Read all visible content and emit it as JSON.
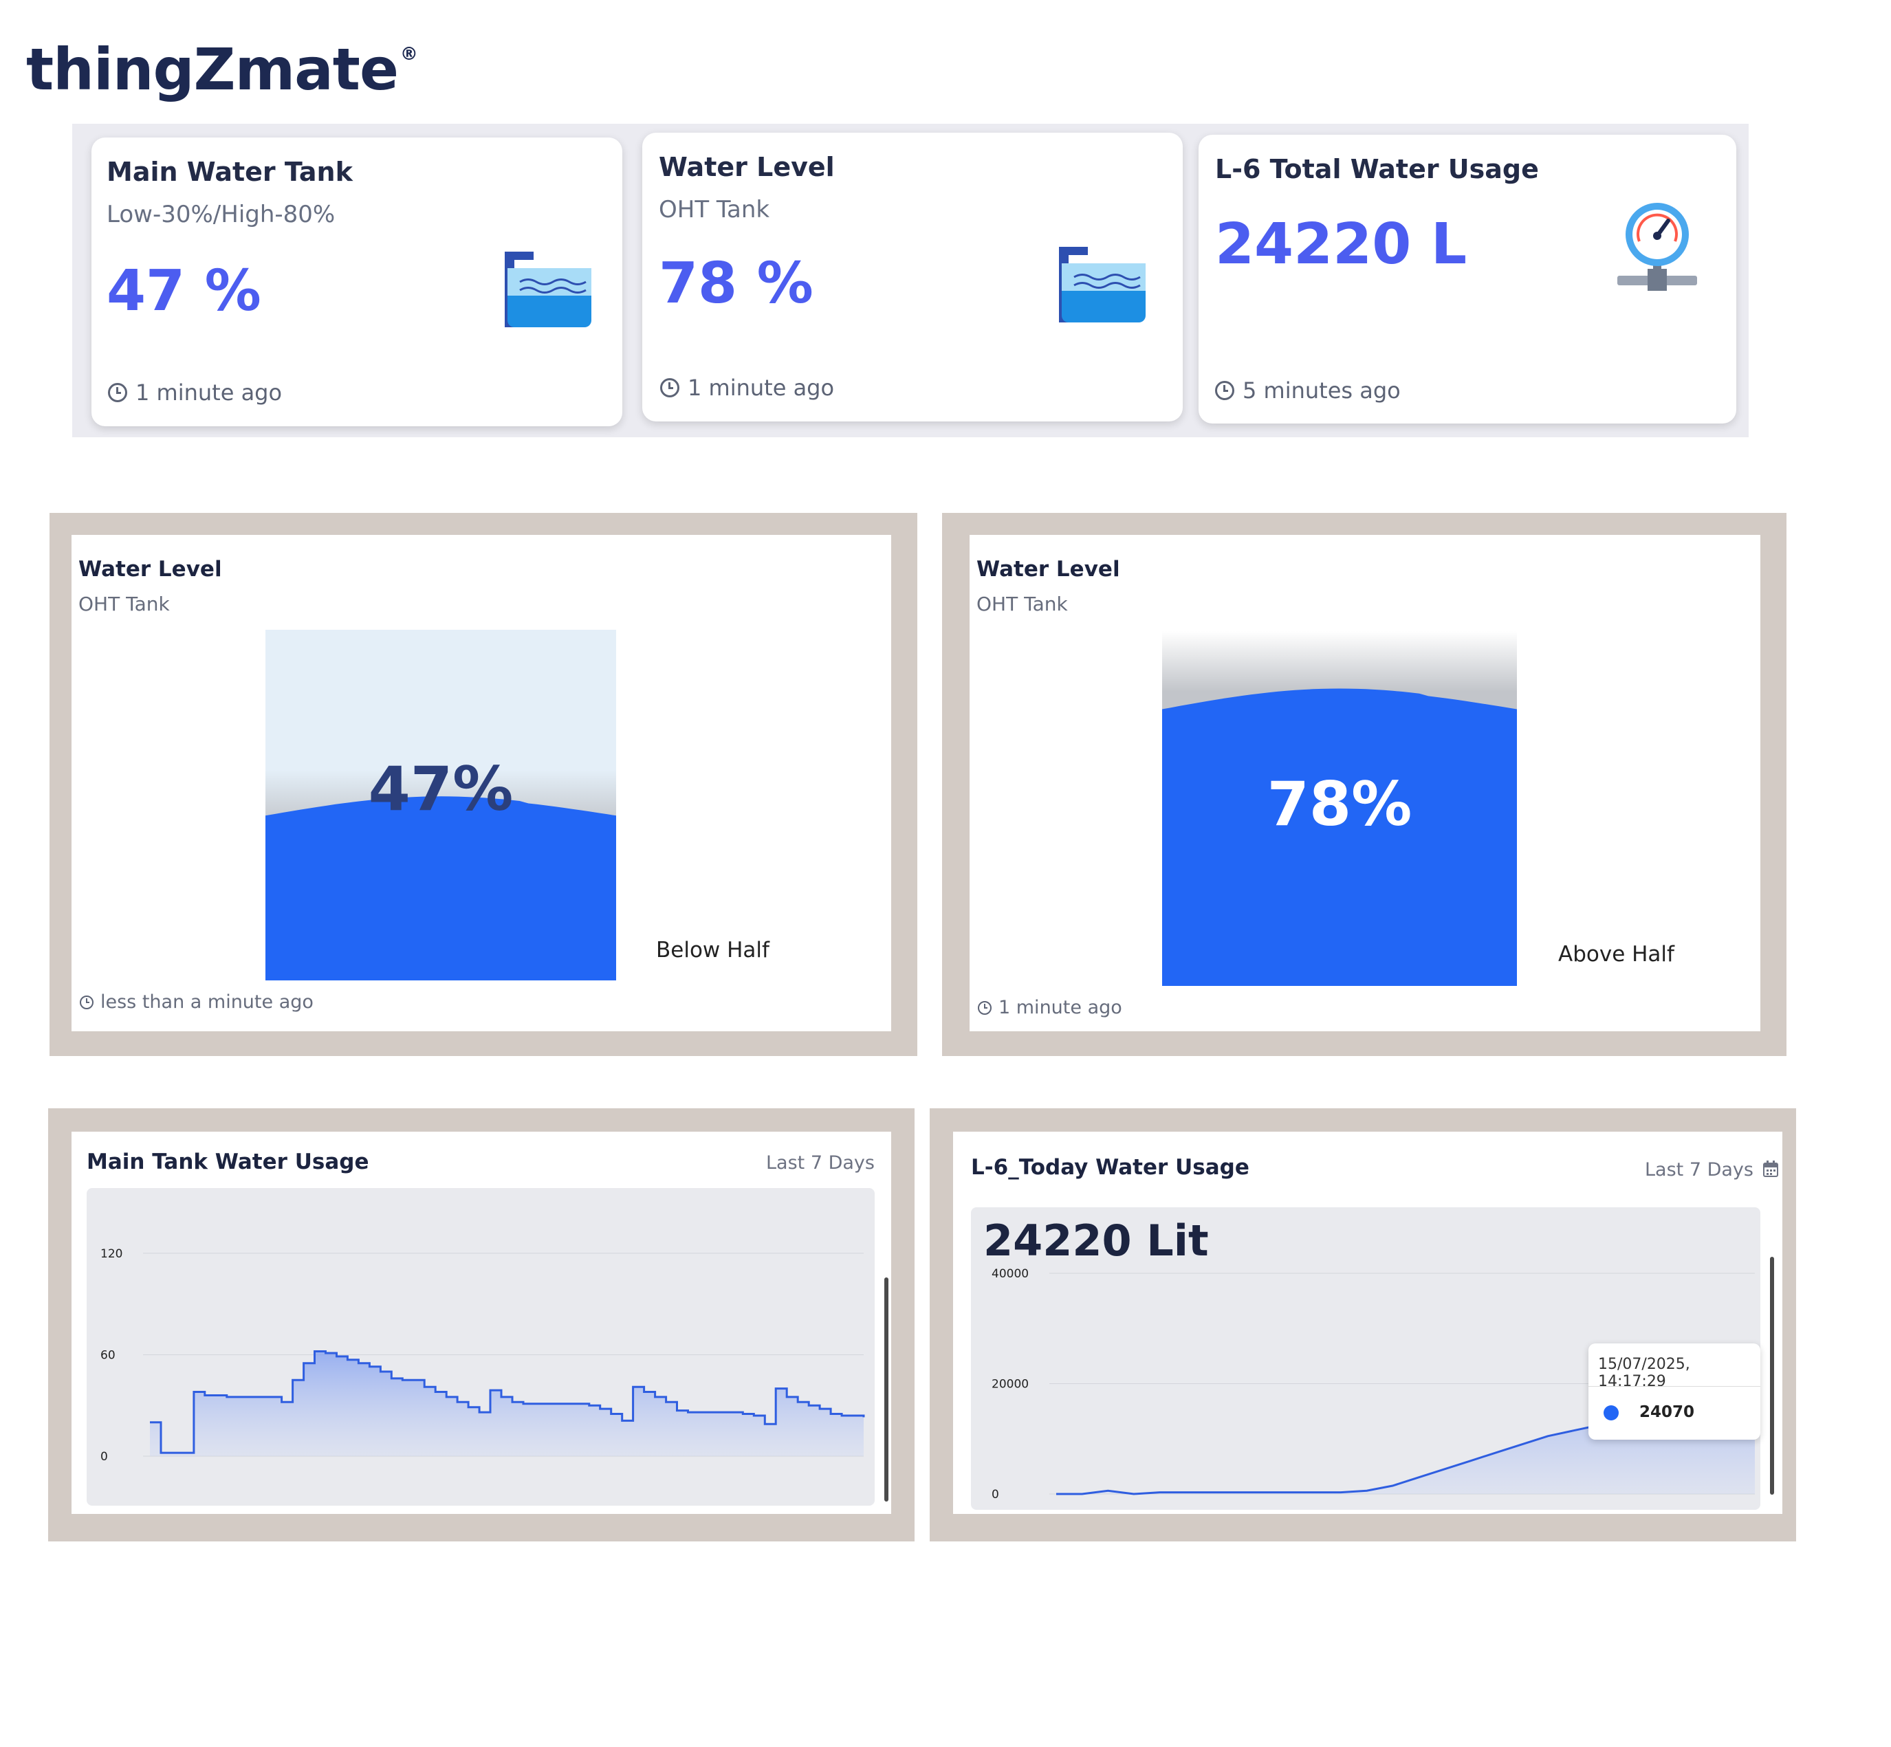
{
  "brand": {
    "name": "thingZmate",
    "mark": "®"
  },
  "kpis": [
    {
      "title": "Main Water Tank",
      "subtitle": "Low-30%/High-80%",
      "value": "47 %",
      "updated": "1 minute ago",
      "icon": "water-tank-icon"
    },
    {
      "title": "Water Level",
      "subtitle": "OHT Tank",
      "value": "78 %",
      "updated": "1 minute ago",
      "icon": "water-tank-icon"
    },
    {
      "title": "L-6 Total Water Usage",
      "subtitle": "",
      "value": "24220 L",
      "updated": "5 minutes ago",
      "icon": "flow-meter-icon"
    }
  ],
  "tanks": [
    {
      "title": "Water Level",
      "subtitle": "OHT Tank",
      "level": 47,
      "level_text": "47%",
      "state": "Below Half",
      "updated": "less than a minute ago"
    },
    {
      "title": "Water Level",
      "subtitle": "OHT Tank",
      "level": 78,
      "level_text": "78%",
      "state": "Above Half",
      "updated": "1 minute ago"
    }
  ],
  "usage_cards": [
    {
      "title": "Main Tank Water Usage",
      "range_label": "Last 7 Days"
    },
    {
      "title": "L-6_Today Water Usage",
      "range_label": "Last 7 Days",
      "total": "24220 Lit",
      "tooltip": {
        "time": "15/07/2025, 14:17:29",
        "value": "24070"
      }
    }
  ],
  "colors": {
    "accent": "#4c5df0",
    "water": "#2266f5",
    "series": "#2f5ee0"
  },
  "chart_data": [
    {
      "type": "area",
      "title": "Main Tank Water Usage",
      "xlabel": "",
      "ylabel": "",
      "ylim": [
        0,
        135
      ],
      "yticks": [
        0,
        60,
        120
      ],
      "grid": true,
      "x": [
        0,
        1,
        2,
        3,
        4,
        5,
        6,
        7,
        8,
        9,
        10,
        11,
        12,
        13,
        14,
        15,
        16,
        17,
        18,
        19,
        20,
        21,
        22,
        23,
        24,
        25,
        26,
        27,
        28,
        29,
        30,
        31,
        32,
        33,
        34,
        35,
        36,
        37,
        38,
        39,
        40,
        41,
        42,
        43,
        44,
        45,
        46,
        47,
        48,
        49,
        50,
        51,
        52,
        53,
        54,
        55,
        56,
        57,
        58,
        59,
        60,
        61,
        62,
        63,
        64,
        65
      ],
      "series": [
        {
          "values": [
            20,
            2,
            2,
            2,
            38,
            36,
            36,
            35,
            35,
            35,
            35,
            35,
            32,
            45,
            55,
            62,
            61,
            59,
            57,
            55,
            53,
            50,
            46,
            45,
            45,
            41,
            38,
            35,
            32,
            29,
            26,
            39,
            35,
            32,
            31,
            31,
            31,
            31,
            31,
            31,
            30,
            28,
            25,
            21,
            41,
            38,
            35,
            32,
            27,
            26,
            26,
            26,
            26,
            26,
            25,
            24,
            19,
            40,
            35,
            32,
            30,
            28,
            25,
            24,
            24,
            23
          ]
        }
      ]
    },
    {
      "type": "area",
      "title": "L-6_Today Water Usage",
      "xlabel": "",
      "ylabel": "",
      "ylim": [
        0,
        42000
      ],
      "yticks": [
        0,
        20000,
        40000
      ],
      "grid": true,
      "x": [
        0,
        1,
        2,
        3,
        4,
        5,
        6,
        7,
        8,
        9,
        10,
        11,
        12,
        13,
        14,
        15,
        16,
        17,
        18,
        19,
        20,
        21,
        22,
        23,
        24,
        25,
        26,
        27
      ],
      "series": [
        {
          "values": [
            0,
            0,
            600,
            0,
            300,
            300,
            300,
            300,
            300,
            300,
            300,
            300,
            600,
            1500,
            3000,
            4500,
            6000,
            7500,
            9000,
            10500,
            11500,
            12500,
            15000,
            17500,
            19000,
            21000,
            24070,
            24070
          ]
        }
      ]
    }
  ]
}
